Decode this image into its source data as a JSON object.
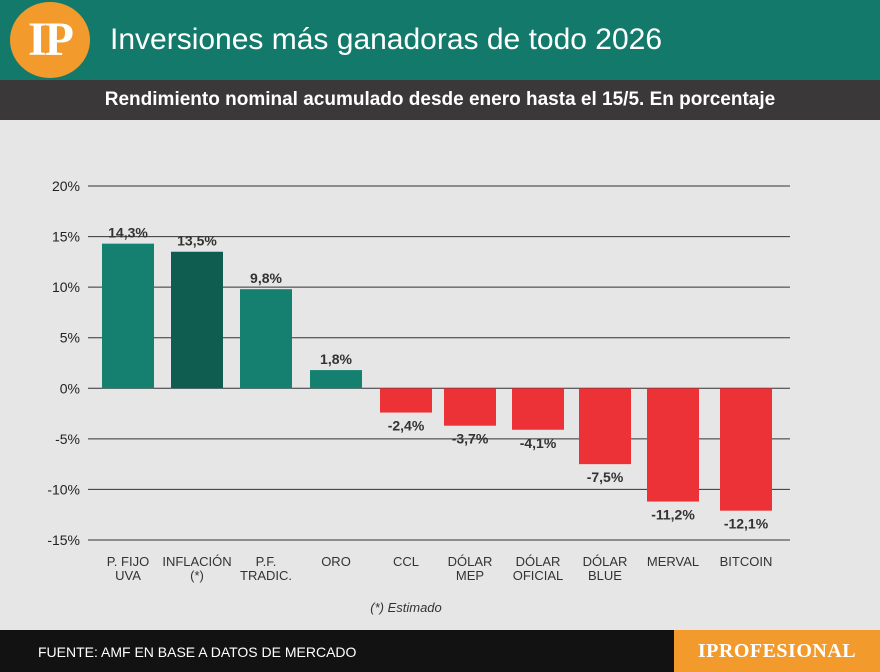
{
  "header": {
    "logo_text": "IP",
    "title": "Inversiones más ganadoras de todo 2026",
    "subtitle": "Rendimiento nominal acumulado desde enero hasta el 15/5. En porcentaje"
  },
  "chart_data": {
    "type": "bar",
    "title": "Inversiones más ganadoras de todo 2026",
    "subtitle": "Rendimiento nominal acumulado desde enero hasta el 15/5. En porcentaje",
    "xlabel": "",
    "ylabel": "",
    "ylim": [
      -15,
      20
    ],
    "yticks": [
      20,
      15,
      10,
      5,
      0,
      -5,
      -10,
      -15
    ],
    "ytick_labels": [
      "20%",
      "15%",
      "10%",
      "5%",
      "0%",
      "-5%",
      "-10%",
      "-15%"
    ],
    "grid": true,
    "categories": [
      [
        "P. FIJO",
        "UVA"
      ],
      [
        "INFLACIÓN",
        "(*)"
      ],
      [
        "P.F.",
        "TRADIC."
      ],
      [
        "ORO"
      ],
      [
        "CCL"
      ],
      [
        "DÓLAR",
        "MEP"
      ],
      [
        "DÓLAR",
        "OFICIAL"
      ],
      [
        "DÓLAR",
        "BLUE"
      ],
      [
        "MERVAL"
      ],
      [
        "BITCOIN"
      ]
    ],
    "values": [
      14.3,
      13.5,
      9.8,
      1.8,
      -2.4,
      -3.7,
      -4.1,
      -7.5,
      -11.2,
      -12.1
    ],
    "value_labels": [
      "14,3%",
      "13,5%",
      "9,8%",
      "1,8%",
      "-2,4%",
      "-3,7%",
      "-4,1%",
      "-7,5%",
      "-11,2%",
      "-12,1%"
    ],
    "colors": [
      "#168070",
      "#0f5d51",
      "#168070",
      "#168070",
      "#ec3237",
      "#ec3237",
      "#ec3237",
      "#ec3237",
      "#ec3237",
      "#ec3237"
    ],
    "axis_color": "#333333"
  },
  "footnote": "(*) Estimado",
  "footer": {
    "source": "FUENTE: AMF EN BASE A DATOS DE MERCADO",
    "brand": "IPROFESIONAL"
  }
}
